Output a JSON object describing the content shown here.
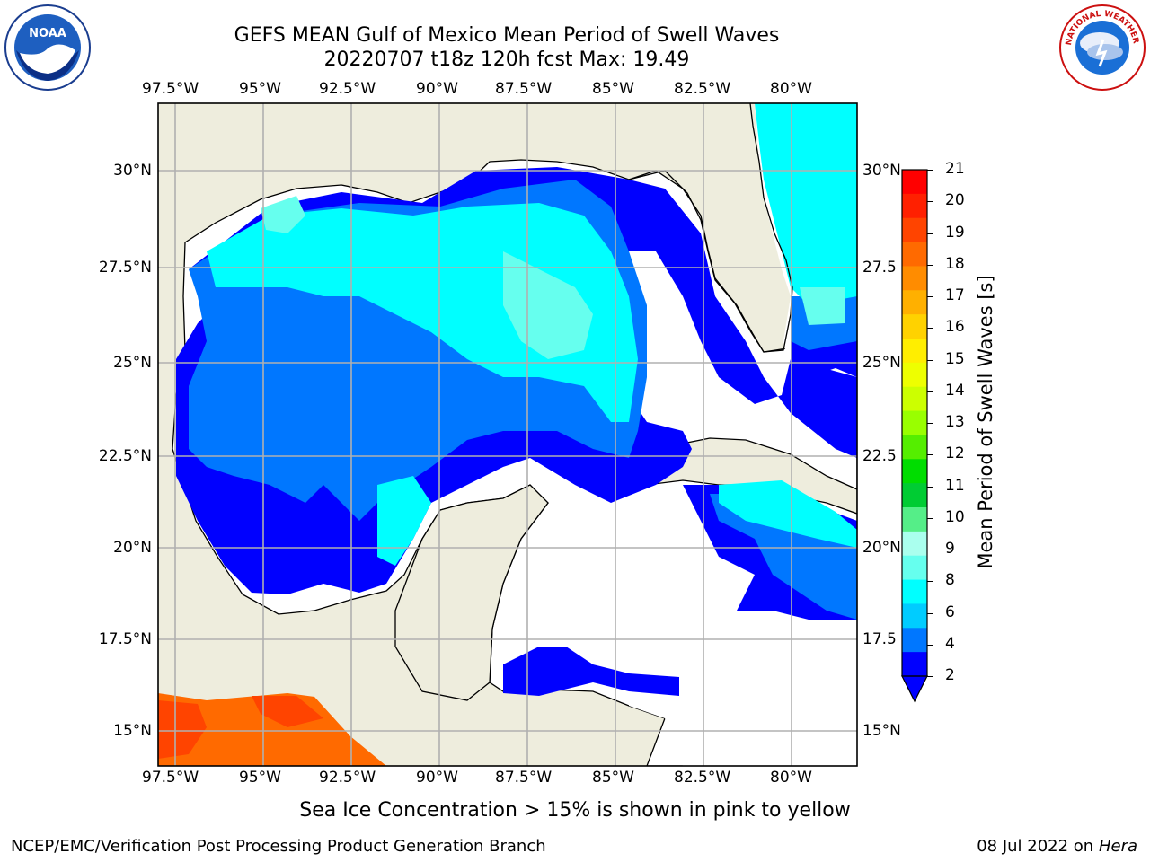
{
  "header": {
    "title_line1": "GEFS MEAN Gulf of Mexico Mean Period of Swell Waves",
    "title_line2": "20220707 t18z 120h fcst   Max: 19.49"
  },
  "logos": {
    "left": "NOAA",
    "right": "NATIONAL WEATHER SERVICE"
  },
  "map": {
    "lon_labels": [
      "97.5°W",
      "95°W",
      "92.5°W",
      "90°W",
      "87.5°W",
      "85°W",
      "82.5°W",
      "80°W"
    ],
    "lat_labels_left": [
      "30°N",
      "27.5°N",
      "25°N",
      "22.5°N",
      "20°N",
      "17.5°N",
      "15°N"
    ],
    "lat_labels_right": [
      "30°N",
      "27.5",
      "25°N",
      "22.5",
      "20°N",
      "17.5",
      "15°N"
    ],
    "colors": {
      "land": "#eeeddd",
      "water_none": "#ffffff",
      "grid": "#b0b0b0"
    }
  },
  "colorbar": {
    "label": "Mean Period of Swell Waves [s]",
    "ticks": [
      "21",
      "20",
      "19",
      "18",
      "17",
      "16",
      "15",
      "14",
      "13",
      "12",
      "11",
      "10",
      "9",
      "8",
      "6",
      "4",
      "2"
    ],
    "colors_top_to_bottom": [
      "#ff0000",
      "#ff2000",
      "#ff4400",
      "#ff6a00",
      "#ff8c00",
      "#ffb000",
      "#ffd200",
      "#ffee00",
      "#eeff00",
      "#ccff00",
      "#99ff00",
      "#55ee00",
      "#00dd00",
      "#00cc33",
      "#55ee88",
      "#aaffee",
      "#66ffee",
      "#00ffff",
      "#00ccff",
      "#0077ff",
      "#0000ff"
    ]
  },
  "footer": {
    "subtitle": "Sea Ice Concentration > 15% is shown in pink to yellow",
    "credit": "NCEP/EMC/Verification Post Processing Product Generation Branch",
    "date": "08 Jul 2022 on ",
    "host": "Hera"
  }
}
